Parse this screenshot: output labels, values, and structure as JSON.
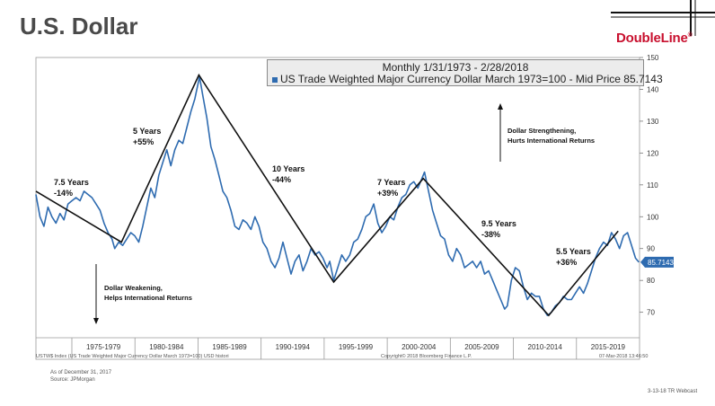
{
  "page": {
    "title": "U.S. Dollar",
    "brand": "DoubleLine",
    "brand_mark": "®",
    "brand_color": "#c8102e",
    "as_of": "As of December 31, 2017",
    "source": "Source: JPMorgan",
    "webcast": "3-13-18 TR Webcast",
    "footer_left": "USTW$ Index (US Trade Weighted Major Currency Dollar March 1973=100) USD histori",
    "footer_center": "Copyright© 2018 Bloomberg Finance L.P.",
    "footer_right": "07-Mar-2018 13:46:50"
  },
  "legend": {
    "title": "Monthly 1/31/1973 - 2/28/2018",
    "series_label": "US Trade Weighted Major Currency Dollar March 1973=100 - Mid Price 85.7143"
  },
  "annotations": {
    "c1_years": "7.5 Years",
    "c1_pct": "-14%",
    "c2_years": "5 Years",
    "c2_pct": "+55%",
    "c3_years": "10 Years",
    "c3_pct": "-44%",
    "c4_years": "7 Years",
    "c4_pct": "+39%",
    "c5_years": "9.5 Years",
    "c5_pct": "-38%",
    "c6_years": "5.5 Years",
    "c6_pct": "+36%",
    "strength_1": "Dollar Strengthening,",
    "strength_2": "Hurts International Returns",
    "weak_1": "Dollar Weakening,",
    "weak_2": "Helps International Returns"
  },
  "chart_data": {
    "type": "line",
    "ylim": [
      62,
      150
    ],
    "xlim": [
      1973.0,
      2018.2
    ],
    "yticks": [
      70,
      80,
      90,
      100,
      110,
      120,
      130,
      140,
      150
    ],
    "x_tick_labels": [
      "1975-1979",
      "1980-1984",
      "1985-1989",
      "1990-1994",
      "1995-1999",
      "2000-2004",
      "2005-2009",
      "2010-2014",
      "2015-2019"
    ],
    "last_value_label": "85.7143",
    "colors": {
      "series": "#2e6bb0",
      "trend": "#111111",
      "last_badge": "#2e6bb0"
    },
    "series": [
      {
        "name": "US Trade Weighted Major Currency Dollar March 1973=100 - Mid Price",
        "x": [
          1973.0,
          1973.3,
          1973.6,
          1973.9,
          1974.2,
          1974.5,
          1974.8,
          1975.1,
          1975.4,
          1975.7,
          1976.0,
          1976.3,
          1976.6,
          1976.9,
          1977.2,
          1977.5,
          1977.8,
          1978.1,
          1978.4,
          1978.7,
          1978.9,
          1979.2,
          1979.5,
          1979.8,
          1980.1,
          1980.4,
          1980.7,
          1981.0,
          1981.3,
          1981.6,
          1981.9,
          1982.2,
          1982.5,
          1982.8,
          1983.1,
          1983.4,
          1983.7,
          1984.0,
          1984.3,
          1984.6,
          1984.9,
          1985.1,
          1985.25,
          1985.5,
          1985.8,
          1986.1,
          1986.4,
          1986.7,
          1987.0,
          1987.3,
          1987.6,
          1987.9,
          1988.2,
          1988.5,
          1988.8,
          1989.1,
          1989.4,
          1989.7,
          1990.0,
          1990.3,
          1990.6,
          1990.9,
          1991.2,
          1991.5,
          1991.8,
          1992.1,
          1992.4,
          1992.7,
          1993.0,
          1993.3,
          1993.6,
          1993.9,
          1994.2,
          1994.5,
          1994.8,
          1995.0,
          1995.3,
          1995.6,
          1995.9,
          1996.2,
          1996.5,
          1996.8,
          1997.1,
          1997.4,
          1997.7,
          1998.0,
          1998.3,
          1998.6,
          1998.9,
          1999.2,
          1999.5,
          1999.8,
          2000.1,
          2000.4,
          2000.7,
          2001.0,
          2001.3,
          2001.6,
          2001.9,
          2002.1,
          2002.4,
          2002.7,
          2003.0,
          2003.3,
          2003.6,
          2003.9,
          2004.2,
          2004.5,
          2004.8,
          2005.1,
          2005.4,
          2005.7,
          2006.0,
          2006.3,
          2006.6,
          2006.9,
          2007.2,
          2007.5,
          2007.8,
          2008.1,
          2008.3,
          2008.6,
          2008.9,
          2009.2,
          2009.5,
          2009.8,
          2010.1,
          2010.4,
          2010.7,
          2011.0,
          2011.3,
          2011.6,
          2011.9,
          2012.2,
          2012.5,
          2012.8,
          2013.1,
          2013.4,
          2013.7,
          2014.0,
          2014.3,
          2014.6,
          2014.9,
          2015.2,
          2015.5,
          2015.8,
          2016.1,
          2016.4,
          2016.7,
          2017.0,
          2017.3,
          2017.6,
          2017.9,
          2018.15
        ],
        "values": [
          107,
          100,
          97,
          103,
          100,
          98,
          101,
          99,
          104,
          105,
          106,
          105,
          108,
          107,
          106,
          104,
          102,
          98,
          95,
          93,
          90,
          92,
          91,
          93,
          95,
          94,
          92,
          97,
          103,
          109,
          106,
          113,
          117,
          121,
          116,
          121,
          124,
          123,
          128,
          133,
          137,
          141,
          144,
          138,
          131,
          122,
          118,
          113,
          108,
          106,
          102,
          97,
          96,
          99,
          98,
          96,
          100,
          97,
          92,
          90,
          86,
          84,
          87,
          92,
          87,
          82,
          86,
          88,
          83,
          86,
          90,
          88,
          89,
          87,
          84,
          86,
          80,
          84,
          88,
          86,
          88,
          92,
          93,
          96,
          100,
          101,
          104,
          98,
          95,
          97,
          100,
          99,
          103,
          106,
          107,
          110,
          111,
          109,
          112,
          114,
          108,
          102,
          98,
          94,
          93,
          88,
          86,
          90,
          88,
          84,
          85,
          86,
          84,
          86,
          82,
          83,
          80,
          77,
          74,
          71,
          72,
          80,
          84,
          83,
          78,
          74,
          76,
          75,
          75,
          71,
          69,
          70,
          72,
          73,
          75,
          74,
          74,
          76,
          78,
          76,
          79,
          83,
          87,
          90,
          92,
          91,
          95,
          93,
          90,
          94,
          95,
          91,
          87,
          85.71
        ]
      },
      {
        "name": "",
        "x": [
          1973.0,
          1979.4,
          1985.2,
          1995.3,
          2002.0,
          2011.4,
          2016.6
        ],
        "values": [
          108,
          92,
          144.5,
          79.5,
          112,
          69,
          95.5
        ]
      }
    ]
  }
}
